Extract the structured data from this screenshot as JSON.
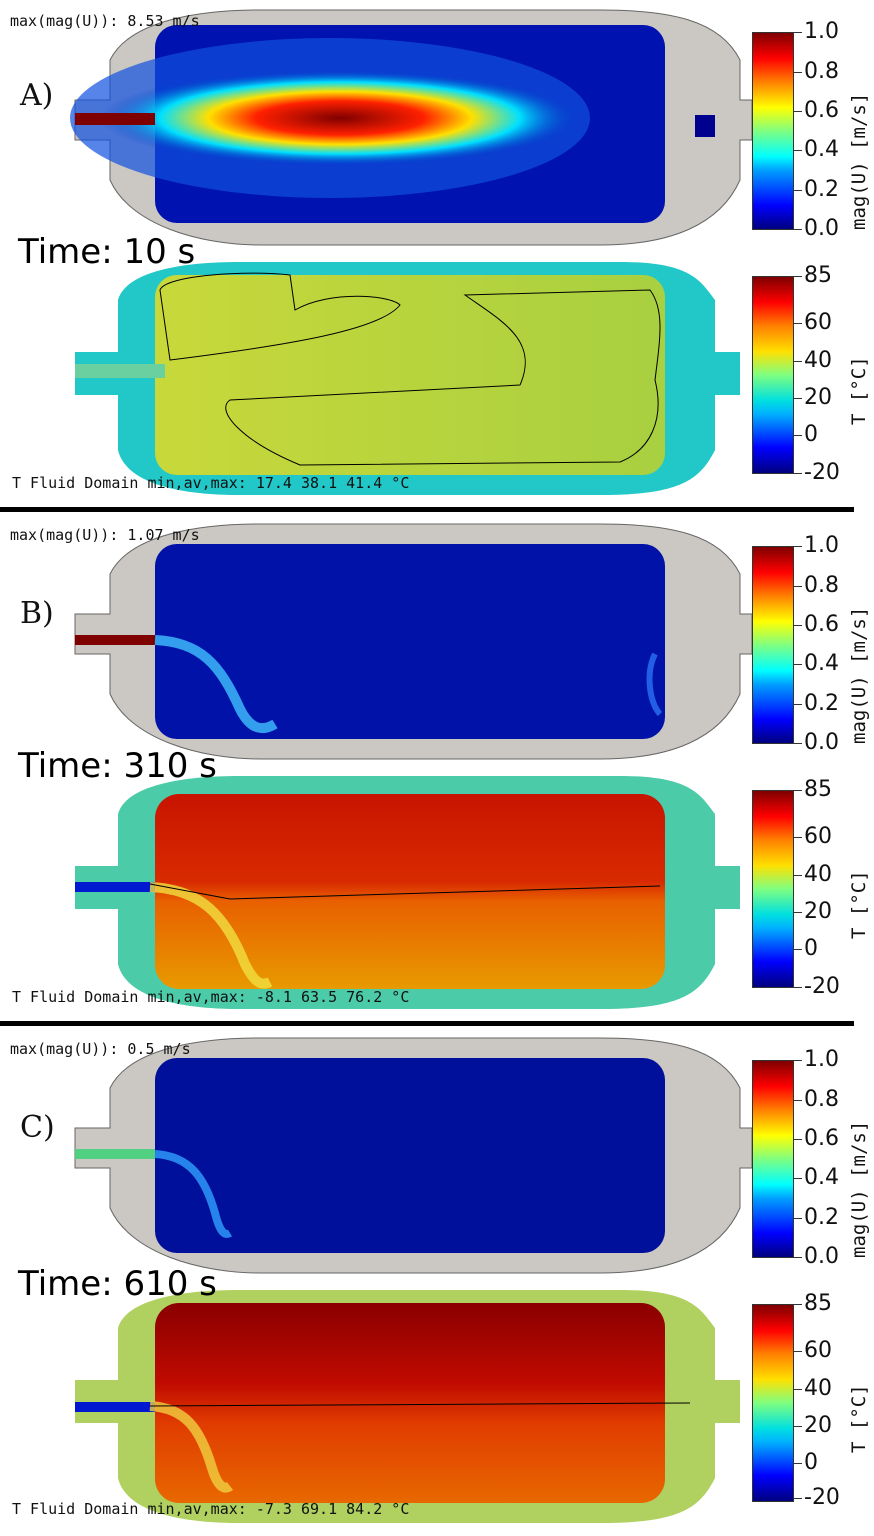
{
  "panels": [
    {
      "label": "A)",
      "max_u": "max(mag(U)): 8.53 m/s",
      "time": "Time: 10 s",
      "t_stats": "T Fluid Domain min,av,max: 17.4 38.1 41.4 °C"
    },
    {
      "label": "B)",
      "max_u": "max(mag(U)): 1.07 m/s",
      "time": "Time: 310 s",
      "t_stats": "T Fluid Domain min,av,max: -8.1 63.5 76.2 °C"
    },
    {
      "label": "C)",
      "max_u": "max(mag(U)): 0.5 m/s",
      "time": "Time: 610 s",
      "t_stats": "T Fluid Domain min,av,max: -7.3 69.1 84.2 °C"
    }
  ],
  "velocity_colorbar": {
    "title": "mag(U) [m/s]",
    "ticks": [
      "1.0",
      "0.8",
      "0.6",
      "0.4",
      "0.2",
      "0.0"
    ]
  },
  "temperature_colorbar": {
    "title": "T [°C]",
    "ticks": [
      "85",
      "60",
      "40",
      "20",
      "0",
      "-20"
    ]
  },
  "colors": {
    "tank_wall": "#cbc8c3",
    "deep_blue": "#00008f",
    "hot_red": "#c81400",
    "cyan_wall": "#22c8c8"
  }
}
